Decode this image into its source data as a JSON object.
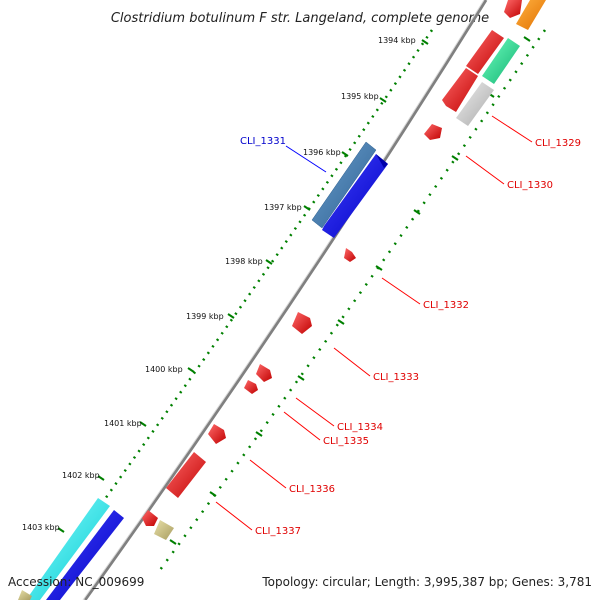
{
  "title": "Clostridium botulinum F str. Langeland, complete genome",
  "accession": "Accession: NC_009699",
  "summary": "Topology: circular; Length: 3,995,387 bp; Genes: 3,781",
  "ticks": [
    {
      "label": "1394 kbp",
      "pos": 1394
    },
    {
      "label": "1395 kbp",
      "pos": 1395
    },
    {
      "label": "1396 kbp",
      "pos": 1396
    },
    {
      "label": "1397 kbp",
      "pos": 1397
    },
    {
      "label": "1398 kbp",
      "pos": 1398
    },
    {
      "label": "1399 kbp",
      "pos": 1399
    },
    {
      "label": "1400 kbp",
      "pos": 1400
    },
    {
      "label": "1401 kbp",
      "pos": 1401
    },
    {
      "label": "1402 kbp",
      "pos": 1402
    },
    {
      "label": "1403 kbp",
      "pos": 1403
    }
  ],
  "genes": [
    {
      "name": "CLI_1329",
      "color": "#e00000"
    },
    {
      "name": "CLI_1330",
      "color": "#e00000"
    },
    {
      "name": "CLI_1331",
      "color": "#0000cc"
    },
    {
      "name": "CLI_1332",
      "color": "#e00000"
    },
    {
      "name": "CLI_1333",
      "color": "#e00000"
    },
    {
      "name": "CLI_1334",
      "color": "#e00000"
    },
    {
      "name": "CLI_1335",
      "color": "#e00000"
    },
    {
      "name": "CLI_1336",
      "color": "#e00000"
    },
    {
      "name": "CLI_1337",
      "color": "#e00000"
    }
  ],
  "colors": {
    "backbone": "#808080",
    "red_feature": "#ee0000",
    "blue_feature": "#0000ee",
    "steel_feature": "#4682b4",
    "cyan_feature": "#00eeee",
    "green_feature": "#20e090",
    "gray_feature": "#c8c8c8",
    "orange_feature": "#ff8c00",
    "khaki_feature": "#c8c080",
    "dotted_track": "#008000"
  }
}
